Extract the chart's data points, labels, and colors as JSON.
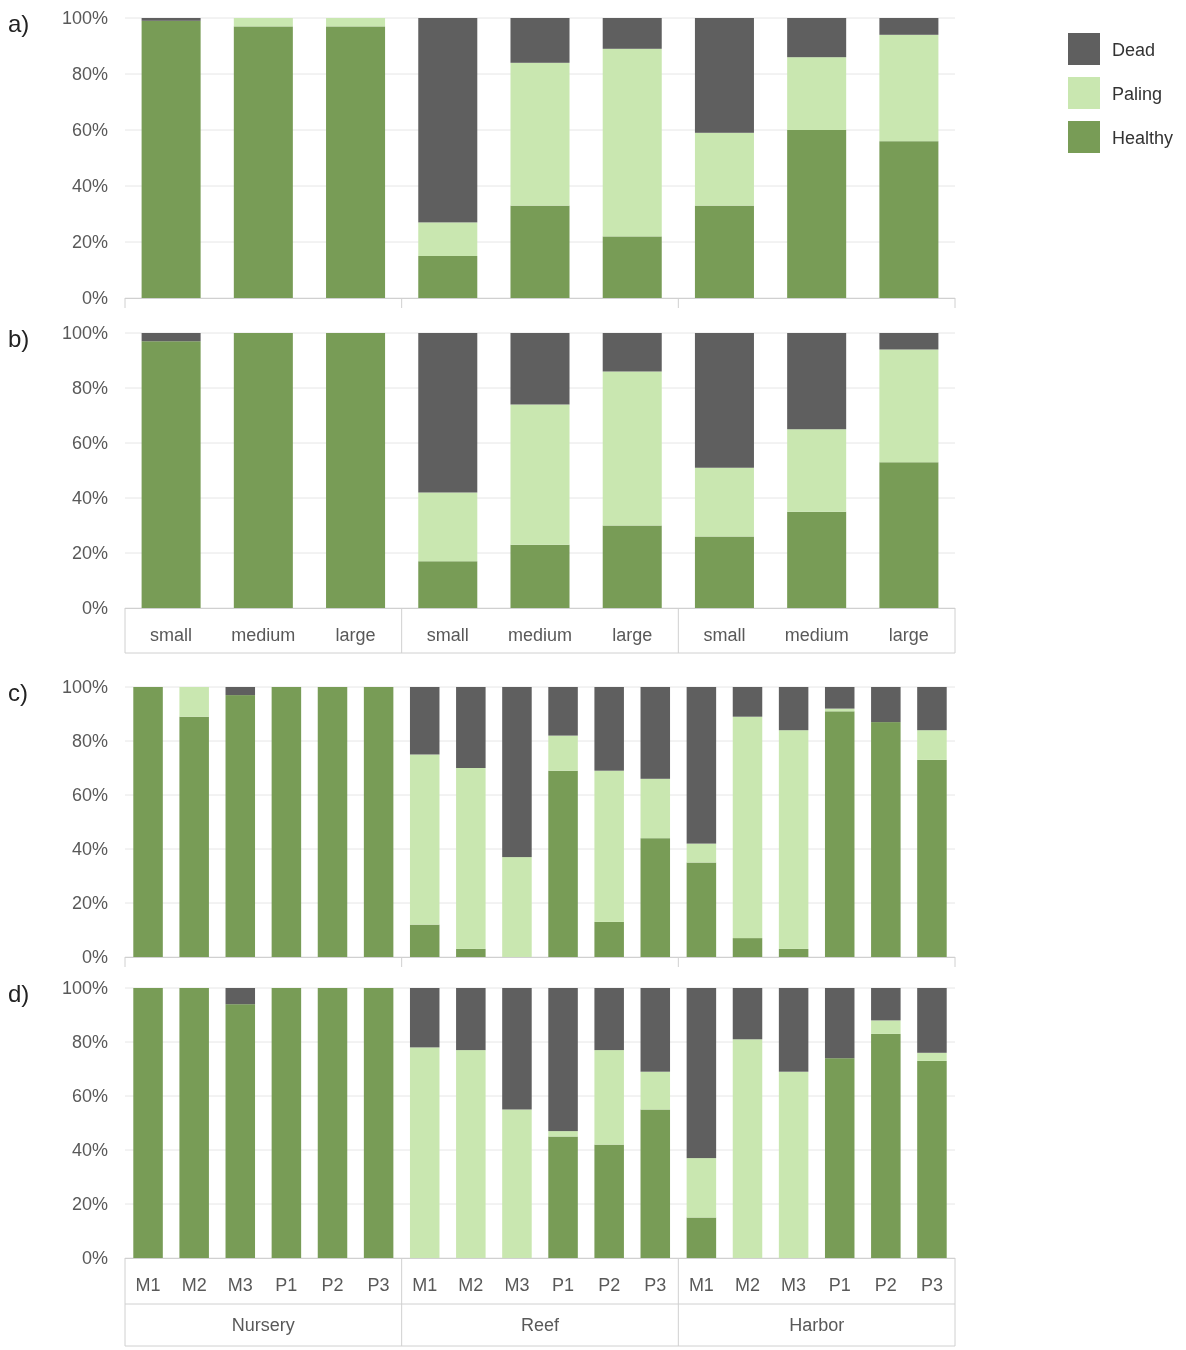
{
  "chart_data": [
    {
      "type": "bar",
      "title": "a)",
      "stacked": true,
      "grid": "y",
      "legend": "right",
      "tick_labels": "y",
      "categories": [
        null,
        null,
        null,
        null,
        null,
        null,
        null,
        null,
        null
      ],
      "ylim": [
        0,
        100
      ],
      "yticks": [
        {
          "value": 0,
          "label": "0%"
        },
        {
          "value": 20,
          "label": "20%"
        },
        {
          "value": 40,
          "label": "40%"
        },
        {
          "value": 60,
          "label": "60%"
        },
        {
          "value": 80,
          "label": "80%"
        },
        {
          "value": 100,
          "label": "100%"
        }
      ],
      "series": [
        {
          "name": "Healthy",
          "color": "#789c56",
          "values": [
            99,
            97,
            97,
            15,
            33,
            22,
            33,
            60,
            56
          ]
        },
        {
          "name": "Paling",
          "color": "#c9e7b0",
          "values": [
            0,
            3,
            3,
            12,
            51,
            67,
            26,
            26,
            38
          ]
        },
        {
          "name": "Dead",
          "color": "#5f5f5f",
          "values": [
            1,
            0,
            0,
            73,
            16,
            11,
            41,
            14,
            6
          ]
        }
      ]
    },
    {
      "type": "bar",
      "title": "b)",
      "stacked": true,
      "grid": "y",
      "categories": [
        "small",
        "medium",
        "large",
        "small",
        "medium",
        "large",
        "small",
        "medium",
        "large"
      ],
      "ylim": [
        0,
        100
      ],
      "yticks": [
        {
          "value": 0,
          "label": "0%"
        },
        {
          "value": 20,
          "label": "20%"
        },
        {
          "value": 40,
          "label": "40%"
        },
        {
          "value": 60,
          "label": "60%"
        },
        {
          "value": 80,
          "label": "80%"
        },
        {
          "value": 100,
          "label": "100%"
        }
      ],
      "series": [
        {
          "color": "#789c56",
          "values": [
            97,
            100,
            100,
            17,
            23,
            30,
            26,
            35,
            53
          ]
        },
        {
          "color": "#c9e7b0",
          "values": [
            0,
            0,
            0,
            25,
            51,
            56,
            25,
            30,
            41
          ]
        },
        {
          "color": "#5f5f5f",
          "values": [
            3,
            0,
            0,
            58,
            26,
            14,
            49,
            35,
            6
          ]
        }
      ]
    },
    {
      "type": "bar",
      "title": "c)",
      "stacked": true,
      "grid": "y",
      "tick_labels": "y",
      "categories": [
        null,
        null,
        null,
        null,
        null,
        null,
        null,
        null,
        null,
        null,
        null,
        null,
        null,
        null,
        null,
        null,
        null,
        null
      ],
      "ylim": [
        0,
        100
      ],
      "yticks": [
        {
          "value": 0,
          "label": "0%"
        },
        {
          "value": 20,
          "label": "20%"
        },
        {
          "value": 40,
          "label": "40%"
        },
        {
          "value": 60,
          "label": "60%"
        },
        {
          "value": 80,
          "label": "80%"
        },
        {
          "value": 100,
          "label": "100%"
        }
      ],
      "series": [
        {
          "color": "#789c56",
          "values": [
            100,
            89,
            97,
            100,
            100,
            100,
            12,
            3,
            0,
            69,
            13,
            44,
            35,
            7,
            3,
            91,
            87,
            73
          ]
        },
        {
          "color": "#c9e7b0",
          "values": [
            0,
            11,
            0,
            0,
            0,
            0,
            63,
            67,
            37,
            13,
            56,
            22,
            7,
            82,
            81,
            1,
            0,
            11
          ]
        },
        {
          "color": "#5f5f5f",
          "values": [
            0,
            0,
            3,
            0,
            0,
            0,
            25,
            30,
            63,
            18,
            31,
            34,
            58,
            11,
            16,
            8,
            13,
            16
          ]
        }
      ]
    },
    {
      "type": "bar",
      "title": "d)",
      "stacked": true,
      "grid": "y",
      "categories": [
        "M1",
        "M2",
        "M3",
        "P1",
        "P2",
        "P3",
        "M1",
        "M2",
        "M3",
        "P1",
        "P2",
        "P3",
        "M1",
        "M2",
        "M3",
        "P1",
        "P2",
        "P3"
      ],
      "ylim": [
        0,
        100
      ],
      "yticks": [
        {
          "value": 0,
          "label": "0%"
        },
        {
          "value": 20,
          "label": "20%"
        },
        {
          "value": 40,
          "label": "40%"
        },
        {
          "value": 60,
          "label": "60%"
        },
        {
          "value": 80,
          "label": "80%"
        },
        {
          "value": 100,
          "label": "100%"
        }
      ],
      "annotations": [
        "Nursery",
        "Reef",
        "Harbor"
      ],
      "series": [
        {
          "color": "#789c56",
          "values": [
            100,
            100,
            94,
            100,
            100,
            100,
            0,
            0,
            0,
            45,
            42,
            55,
            15,
            0,
            0,
            74,
            83,
            73
          ]
        },
        {
          "color": "#c9e7b0",
          "values": [
            0,
            0,
            0,
            0,
            0,
            0,
            78,
            77,
            55,
            2,
            35,
            14,
            22,
            81,
            69,
            0,
            5,
            3
          ]
        },
        {
          "color": "#5f5f5f",
          "values": [
            0,
            0,
            6,
            0,
            0,
            0,
            22,
            23,
            45,
            53,
            23,
            31,
            63,
            19,
            31,
            26,
            12,
            24
          ]
        }
      ]
    }
  ]
}
